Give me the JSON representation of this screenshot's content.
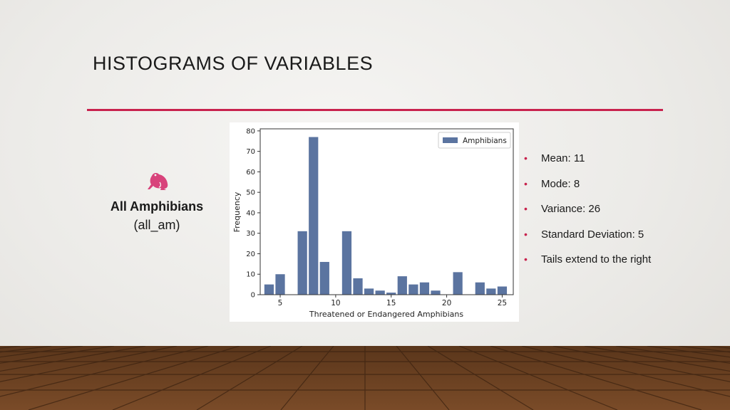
{
  "slide": {
    "title": "HISTOGRAMS OF VARIABLES",
    "accent_color": "#c8224d",
    "icon": "frog-icon",
    "label_main": "All Amphibians",
    "label_sub": "(all_am)"
  },
  "bullets": [
    "Mean:  11",
    "Mode:  8",
    "Variance:  26",
    "Standard Deviation:  5",
    "Tails extend to the right"
  ],
  "chart_data": {
    "type": "bar",
    "xlabel": "Threatened or Endangered Amphibians",
    "ylabel": "Frequency",
    "xlim": [
      3.2,
      26.0
    ],
    "ylim": [
      0,
      81
    ],
    "xticks": [
      5,
      10,
      15,
      20,
      25
    ],
    "yticks": [
      0,
      10,
      20,
      30,
      40,
      50,
      60,
      70,
      80
    ],
    "bar_width": 0.85,
    "bar_color": "#5b74a0",
    "legend_position": "top-right",
    "grid": false,
    "series": [
      {
        "name": "Amphibians",
        "x": [
          4,
          5,
          7,
          8,
          9,
          11,
          12,
          13,
          14,
          15,
          16,
          17,
          18,
          19,
          21,
          23,
          24,
          25
        ],
        "values": [
          5,
          10,
          31,
          77,
          16,
          31,
          8,
          3,
          2,
          1,
          9,
          5,
          6,
          2,
          11,
          6,
          3,
          4
        ]
      }
    ]
  }
}
